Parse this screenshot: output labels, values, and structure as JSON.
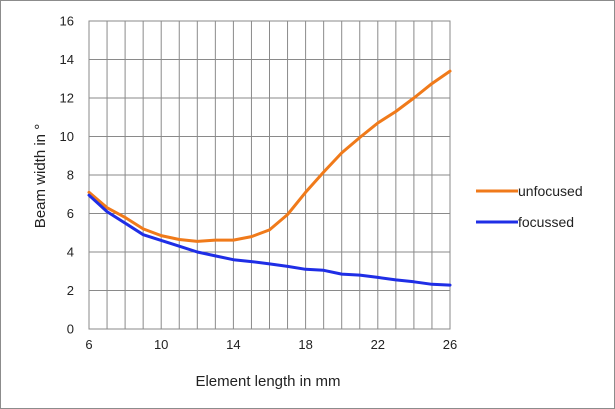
{
  "chart_data": {
    "type": "line",
    "title": "",
    "xlabel": "Element length in mm",
    "ylabel": "Beam width in °",
    "xlim": [
      6,
      26
    ],
    "ylim": [
      0,
      16
    ],
    "x_ticks": [
      6,
      10,
      14,
      18,
      22,
      26
    ],
    "y_ticks": [
      0,
      2,
      4,
      6,
      8,
      10,
      12,
      14,
      16
    ],
    "x_minor_step": 1,
    "grid": true,
    "legend_position": "right",
    "series": [
      {
        "name": "unfocused",
        "color": "#f07a1a",
        "x": [
          6,
          7,
          8,
          9,
          10,
          11,
          12,
          13,
          14,
          15,
          16,
          17,
          18,
          19,
          20,
          21,
          22,
          23,
          24,
          25,
          26
        ],
        "y": [
          7.1,
          6.3,
          5.8,
          5.2,
          4.85,
          4.65,
          4.55,
          4.62,
          4.62,
          4.8,
          5.15,
          5.95,
          7.1,
          8.15,
          9.15,
          9.95,
          10.7,
          11.3,
          12.0,
          12.75,
          13.4
        ]
      },
      {
        "name": "focussed",
        "color": "#1f2ee6",
        "x": [
          6,
          7,
          8,
          9,
          10,
          11,
          12,
          13,
          14,
          15,
          16,
          17,
          18,
          19,
          20,
          21,
          22,
          23,
          24,
          25,
          26
        ],
        "y": [
          6.95,
          6.1,
          5.5,
          4.9,
          4.6,
          4.3,
          4.0,
          3.8,
          3.6,
          3.5,
          3.38,
          3.25,
          3.1,
          3.05,
          2.85,
          2.8,
          2.68,
          2.55,
          2.45,
          2.32,
          2.28
        ]
      }
    ]
  }
}
